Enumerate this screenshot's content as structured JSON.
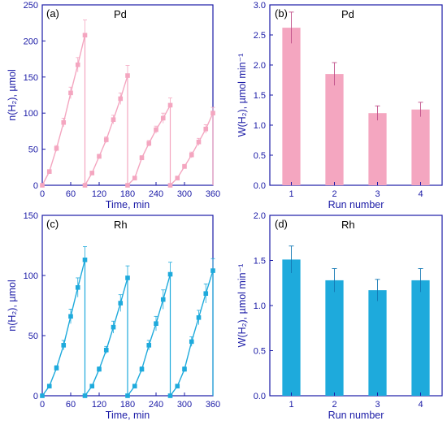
{
  "figure": {
    "colors": {
      "axis": "#1a1aa6",
      "pd": "#f4a6c0",
      "rh": "#1eaadc"
    }
  },
  "chart_data": [
    {
      "id": "a",
      "type": "line",
      "panel_label": "(a)",
      "metal": "Pd",
      "xlabel": "Time, min",
      "ylabel": "n(H₂), µmol",
      "xlim": [
        0,
        360
      ],
      "ylim": [
        0,
        250
      ],
      "xticks": [
        0,
        60,
        120,
        180,
        240,
        300,
        360
      ],
      "yticks": [
        0,
        50,
        100,
        150,
        200,
        250
      ],
      "color": "#f4a6c0",
      "runs": [
        {
          "x": [
            0,
            15,
            30,
            45,
            60,
            75,
            90
          ],
          "y": [
            0,
            19,
            51,
            87,
            128,
            167,
            208
          ],
          "err": [
            0,
            2,
            4,
            6,
            8,
            10,
            21
          ]
        },
        {
          "x": [
            90,
            105,
            120,
            135,
            150,
            165,
            180
          ],
          "y": [
            0,
            17,
            40,
            63,
            91,
            120,
            152
          ],
          "err": [
            0,
            2,
            3,
            4,
            6,
            8,
            14
          ]
        },
        {
          "x": [
            180,
            195,
            210,
            225,
            240,
            255,
            270
          ],
          "y": [
            0,
            10,
            38,
            58,
            77,
            93,
            111
          ],
          "err": [
            0,
            2,
            3,
            4,
            5,
            7,
            10
          ]
        },
        {
          "x": [
            270,
            285,
            300,
            315,
            330,
            345,
            360
          ],
          "y": [
            0,
            10,
            26,
            42,
            60,
            78,
            100
          ],
          "err": [
            0,
            2,
            3,
            4,
            5,
            6,
            8
          ]
        }
      ]
    },
    {
      "id": "b",
      "type": "bar",
      "panel_label": "(b)",
      "metal": "Pd",
      "xlabel": "Run number",
      "ylabel": "W(H₂), µmol min⁻¹",
      "ylim": [
        0,
        3.0
      ],
      "yticks": [
        "0.0",
        "0.5",
        "1.0",
        "1.5",
        "2.0",
        "2.5",
        "3.0"
      ],
      "color": "#f4a6c0",
      "categories": [
        "1",
        "2",
        "3",
        "4"
      ],
      "values": [
        2.62,
        1.85,
        1.2,
        1.26
      ],
      "errors": [
        0.26,
        0.19,
        0.12,
        0.12
      ]
    },
    {
      "id": "c",
      "type": "line",
      "panel_label": "(c)",
      "metal": "Rh",
      "xlabel": "Time, min",
      "ylabel": "n(H₂), µmol",
      "xlim": [
        0,
        360
      ],
      "ylim": [
        0,
        150
      ],
      "xticks": [
        0,
        60,
        120,
        180,
        240,
        300,
        360
      ],
      "yticks": [
        0,
        50,
        100,
        150
      ],
      "color": "#1eaadc",
      "runs": [
        {
          "x": [
            0,
            15,
            30,
            45,
            60,
            75,
            90
          ],
          "y": [
            0,
            8,
            23,
            42,
            66,
            90,
            113
          ],
          "err": [
            0,
            1,
            2,
            4,
            6,
            8,
            11
          ]
        },
        {
          "x": [
            90,
            105,
            120,
            135,
            150,
            165,
            180
          ],
          "y": [
            0,
            8,
            22,
            38,
            57,
            77,
            98
          ],
          "err": [
            0,
            1,
            2,
            3,
            5,
            7,
            10
          ]
        },
        {
          "x": [
            180,
            195,
            210,
            225,
            240,
            255,
            270
          ],
          "y": [
            0,
            8,
            22,
            42,
            60,
            80,
            101
          ],
          "err": [
            0,
            1,
            2,
            4,
            6,
            8,
            10
          ]
        },
        {
          "x": [
            270,
            285,
            300,
            315,
            330,
            345,
            360
          ],
          "y": [
            0,
            8,
            22,
            45,
            65,
            85,
            104
          ],
          "err": [
            0,
            1,
            2,
            4,
            6,
            8,
            10
          ]
        }
      ]
    },
    {
      "id": "d",
      "type": "bar",
      "panel_label": "(d)",
      "metal": "Rh",
      "xlabel": "Run number",
      "ylabel": "W(H₂), µmol min⁻¹",
      "ylim": [
        0,
        2.0
      ],
      "yticks": [
        "0.0",
        "0.5",
        "1.0",
        "1.5",
        "2.0"
      ],
      "color": "#1eaadc",
      "categories": [
        "1",
        "2",
        "3",
        "4"
      ],
      "values": [
        1.51,
        1.28,
        1.17,
        1.28
      ],
      "errors": [
        0.15,
        0.13,
        0.12,
        0.13
      ]
    }
  ]
}
